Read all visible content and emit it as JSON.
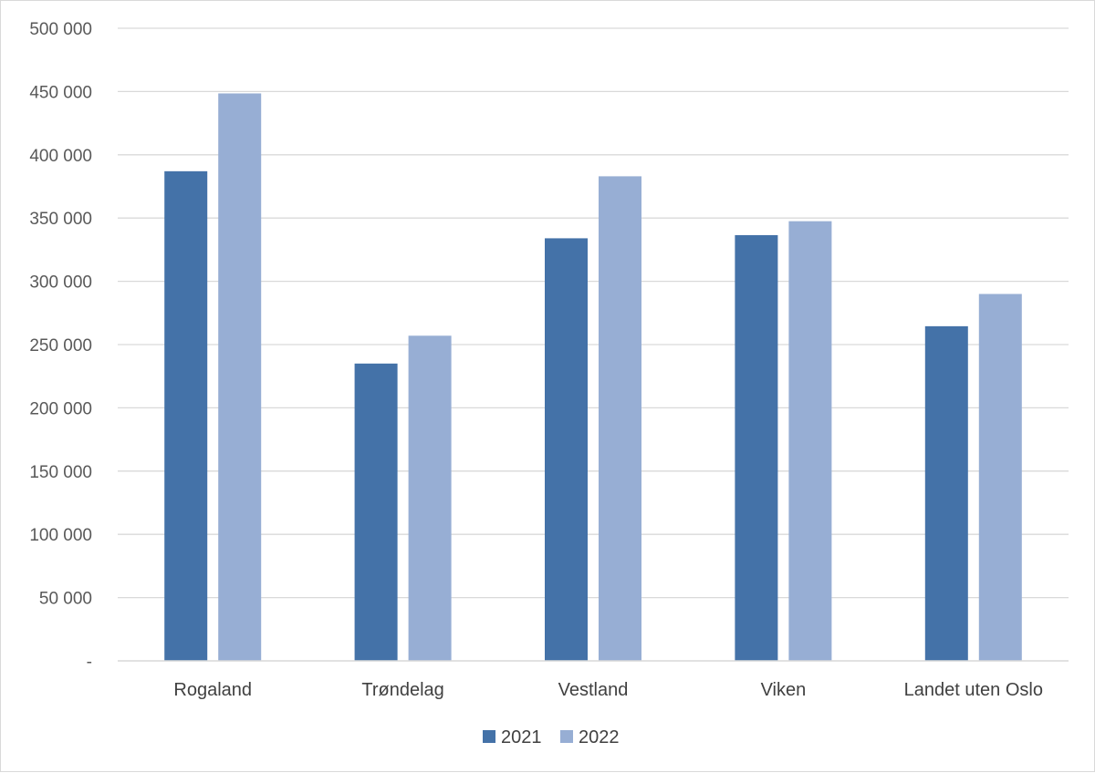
{
  "chart_data": {
    "type": "bar",
    "title": "",
    "xlabel": "",
    "ylabel": "",
    "categories": [
      "Rogaland",
      "Trøndelag",
      "Vestland",
      "Viken",
      "Landet uten Oslo"
    ],
    "series": [
      {
        "name": "2021",
        "color": "#4472a8",
        "values": [
          387000,
          235000,
          334000,
          336500,
          264500
        ]
      },
      {
        "name": "2022",
        "color": "#97aed4",
        "values": [
          448500,
          257000,
          383000,
          347500,
          290000
        ]
      }
    ],
    "ylim": [
      0,
      500000
    ],
    "y_ticks": [
      {
        "value": 0,
        "label": "-"
      },
      {
        "value": 50000,
        "label": "50 000"
      },
      {
        "value": 100000,
        "label": "100 000"
      },
      {
        "value": 150000,
        "label": "150 000"
      },
      {
        "value": 200000,
        "label": "200 000"
      },
      {
        "value": 250000,
        "label": "250 000"
      },
      {
        "value": 300000,
        "label": "300 000"
      },
      {
        "value": 350000,
        "label": "350 000"
      },
      {
        "value": 400000,
        "label": "400 000"
      },
      {
        "value": 450000,
        "label": "450 000"
      },
      {
        "value": 500000,
        "label": "500 000"
      }
    ],
    "grid": true,
    "legend": "bottom",
    "colors": {
      "gridline": "#d9d9d9",
      "axis": "#d9d9d9",
      "frame": "#d9d9d9"
    }
  }
}
